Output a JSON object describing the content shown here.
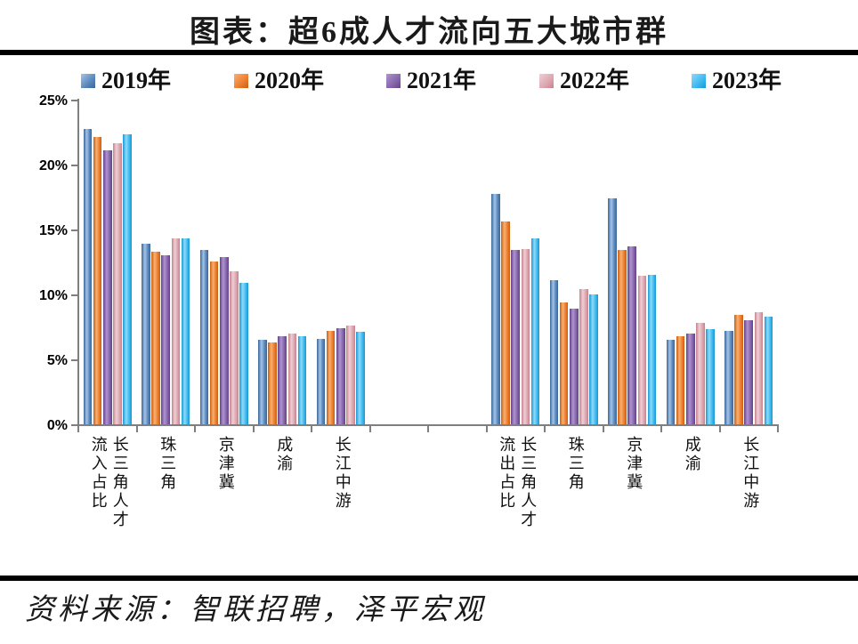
{
  "page": {
    "title": "图表：超6成人才流向五大城市群",
    "source": "资料来源：智联招聘，泽平宏观"
  },
  "chart_data": {
    "type": "bar",
    "title": "图表：超6成人才流向五大城市群",
    "ylim": [
      0,
      25
    ],
    "ytick_labels": [
      "0%",
      "5%",
      "10%",
      "15%",
      "20%",
      "25%"
    ],
    "grid": false,
    "legend_position": "top",
    "series": [
      {
        "name": "2019年",
        "color": "#5b88bb",
        "light": "#a3c4e8",
        "dark": "#3a6598",
        "values": [
          22.7,
          13.9,
          13.4,
          6.5,
          6.6,
          17.7,
          11.1,
          17.4,
          6.5,
          7.2
        ]
      },
      {
        "name": "2020年",
        "color": "#ee7d2e",
        "light": "#f9b072",
        "dark": "#c95f10",
        "values": [
          22.1,
          13.3,
          12.5,
          6.3,
          7.2,
          15.6,
          9.4,
          13.4,
          6.8,
          8.4
        ]
      },
      {
        "name": "2021年",
        "color": "#8565ab",
        "light": "#b095cf",
        "dark": "#64418b",
        "values": [
          21.1,
          13.0,
          12.9,
          6.8,
          7.4,
          13.4,
          8.9,
          13.7,
          7.0,
          8.0
        ]
      },
      {
        "name": "2022年",
        "color": "#dda6b0",
        "light": "#f0cfd5",
        "dark": "#c4838f",
        "values": [
          21.6,
          14.3,
          11.8,
          7.0,
          7.6,
          13.5,
          10.4,
          11.4,
          7.8,
          8.6
        ]
      },
      {
        "name": "2023年",
        "color": "#3db9f0",
        "light": "#8edbf9",
        "dark": "#1a97d3",
        "values": [
          22.3,
          14.3,
          10.9,
          6.8,
          7.1,
          14.3,
          10.0,
          11.5,
          7.3,
          8.3
        ]
      }
    ],
    "categories": [
      {
        "label": "长三角人才流入占比",
        "lines": [
          "长三角人才",
          "流入占比"
        ],
        "cluster": 0
      },
      {
        "label": "珠三角",
        "lines": [
          "珠三角"
        ],
        "cluster": 0
      },
      {
        "label": "京津冀",
        "lines": [
          "京津冀"
        ],
        "cluster": 0
      },
      {
        "label": "成渝",
        "lines": [
          "成渝"
        ],
        "cluster": 0
      },
      {
        "label": "长江中游",
        "lines": [
          "长江中游"
        ],
        "cluster": 0
      },
      {
        "label": "长三角人才流出占比",
        "lines": [
          "长三角人才",
          "流出占比"
        ],
        "cluster": 1
      },
      {
        "label": "珠三角",
        "lines": [
          "珠三角"
        ],
        "cluster": 1
      },
      {
        "label": "京津冀",
        "lines": [
          "京津冀"
        ],
        "cluster": 1
      },
      {
        "label": "成渝",
        "lines": [
          "成渝"
        ],
        "cluster": 1
      },
      {
        "label": "长江中游",
        "lines": [
          "长江中游"
        ],
        "cluster": 1
      }
    ]
  }
}
